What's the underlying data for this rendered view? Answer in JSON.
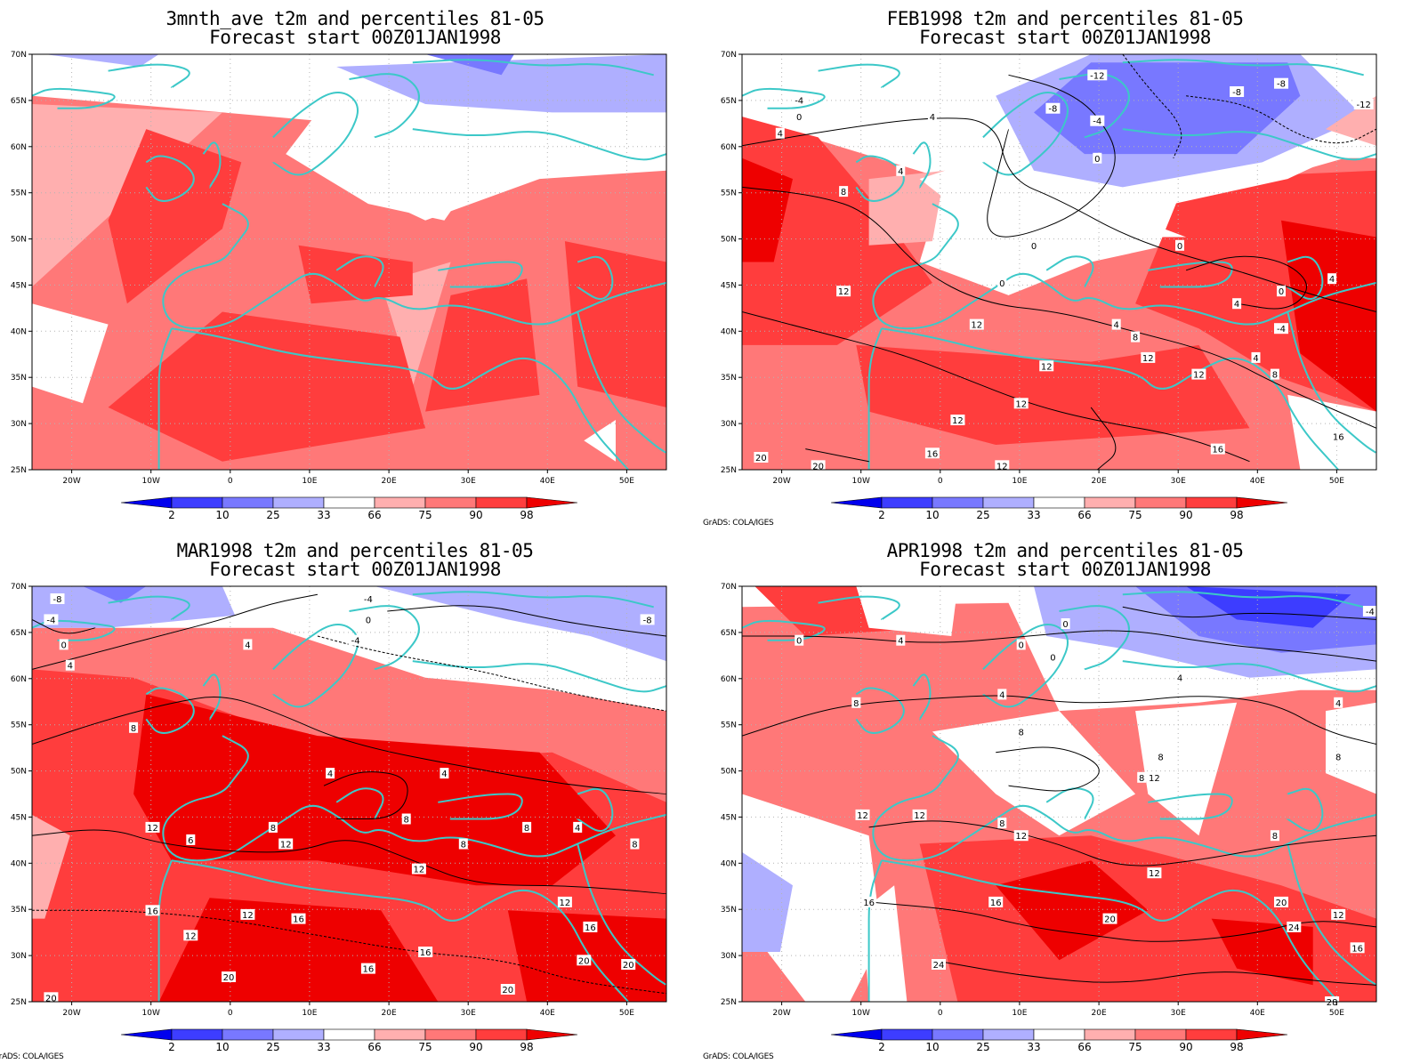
{
  "panels": [
    {
      "title": "3mnth_ave t2m and percentiles 81-05",
      "subtitle": "Forecast start 00Z01JAN1998",
      "credit": "",
      "contour_labels": []
    },
    {
      "title": "FEB1998 t2m and percentiles 81-05",
      "subtitle": "Forecast start 00Z01JAN1998",
      "credit": "GrADS: COLA/IGES",
      "contour_labels": [
        "-4",
        "0",
        "4",
        "-12",
        "-8",
        "-4",
        "0",
        "-8",
        "-8",
        "-12",
        "4",
        "4",
        "8",
        "0",
        "0",
        "0",
        "12",
        "12",
        "12",
        "4",
        "8",
        "4",
        "-4",
        "0",
        "4",
        "4",
        "8",
        "12",
        "12",
        "12",
        "12",
        "16",
        "16",
        "16",
        "20",
        "20",
        "12"
      ]
    },
    {
      "title": "MAR1998 t2m and percentiles 81-05",
      "subtitle": "Forecast start 00Z01JAN1998",
      "credit": "GrADS: COLA/IGES",
      "contour_labels": [
        "-8",
        "-4",
        "0",
        "4",
        "-4",
        "0",
        "-4",
        "-8",
        "4",
        "8",
        "4",
        "4",
        "12",
        "8",
        "6",
        "12",
        "8",
        "8",
        "8",
        "4",
        "8",
        "12",
        "16",
        "12",
        "12",
        "16",
        "16",
        "16",
        "12",
        "16",
        "20",
        "20",
        "20",
        "20",
        "20"
      ]
    },
    {
      "title": "APR1998 t2m and percentiles 81-05",
      "subtitle": "Forecast start 00Z01JAN1998",
      "credit": "GrADS: COLA/IGES",
      "contour_labels": [
        "0",
        "4",
        "0",
        "0",
        "0",
        "4",
        "4",
        "4",
        "-4",
        "8",
        "8",
        "8",
        "8",
        "8",
        "12",
        "12",
        "8",
        "12",
        "12",
        "8",
        "12",
        "16",
        "16",
        "20",
        "20",
        "24",
        "24",
        "16",
        "12",
        "16",
        "28"
      ]
    }
  ],
  "lat_labels": [
    "70N",
    "65N",
    "60N",
    "55N",
    "50N",
    "45N",
    "40N",
    "35N",
    "30N",
    "25N"
  ],
  "lon_labels": [
    "20W",
    "10W",
    "0",
    "10E",
    "20E",
    "30E",
    "40E",
    "50E"
  ],
  "colorbar": {
    "labels": [
      "2",
      "10",
      "25",
      "33",
      "66",
      "75",
      "90",
      "98"
    ],
    "colors": [
      "#0000ee",
      "#3d3dff",
      "#7878ff",
      "#afafff",
      "#ffffff",
      "#ffafaf",
      "#ff7878",
      "#ff3d3d",
      "#ee0000"
    ]
  },
  "map_colors": {
    "coastline": "#3cc8c8",
    "contour": "#000000",
    "gridline": "#b4b4b4"
  }
}
